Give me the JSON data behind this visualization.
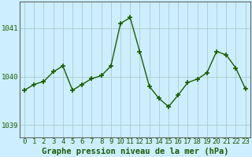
{
  "x": [
    0,
    1,
    2,
    3,
    4,
    5,
    6,
    7,
    8,
    9,
    10,
    11,
    12,
    13,
    14,
    15,
    16,
    17,
    18,
    19,
    20,
    21,
    22,
    23
  ],
  "y": [
    1039.72,
    1039.84,
    1039.9,
    1040.1,
    1040.22,
    1039.72,
    1039.84,
    1039.96,
    1040.02,
    1040.22,
    1041.1,
    1041.22,
    1040.52,
    1039.8,
    1039.55,
    1039.38,
    1039.62,
    1039.88,
    1039.95,
    1040.08,
    1040.52,
    1040.45,
    1040.18,
    1039.75
  ],
  "line_color": "#1a5c00",
  "marker_color": "#1a5c00",
  "bg_color": "#cceeff",
  "grid_color": "#aacccc",
  "title": "Graphe pression niveau de la mer (hPa)",
  "xticks": [
    0,
    1,
    2,
    3,
    4,
    5,
    6,
    7,
    8,
    9,
    10,
    11,
    12,
    13,
    14,
    15,
    16,
    17,
    18,
    19,
    20,
    21,
    22,
    23
  ],
  "yticks": [
    1039,
    1040,
    1041
  ],
  "ylim": [
    1038.75,
    1041.55
  ],
  "xlim": [
    -0.5,
    23.5
  ],
  "tick_fontsize": 6.5,
  "title_fontsize": 7.5
}
